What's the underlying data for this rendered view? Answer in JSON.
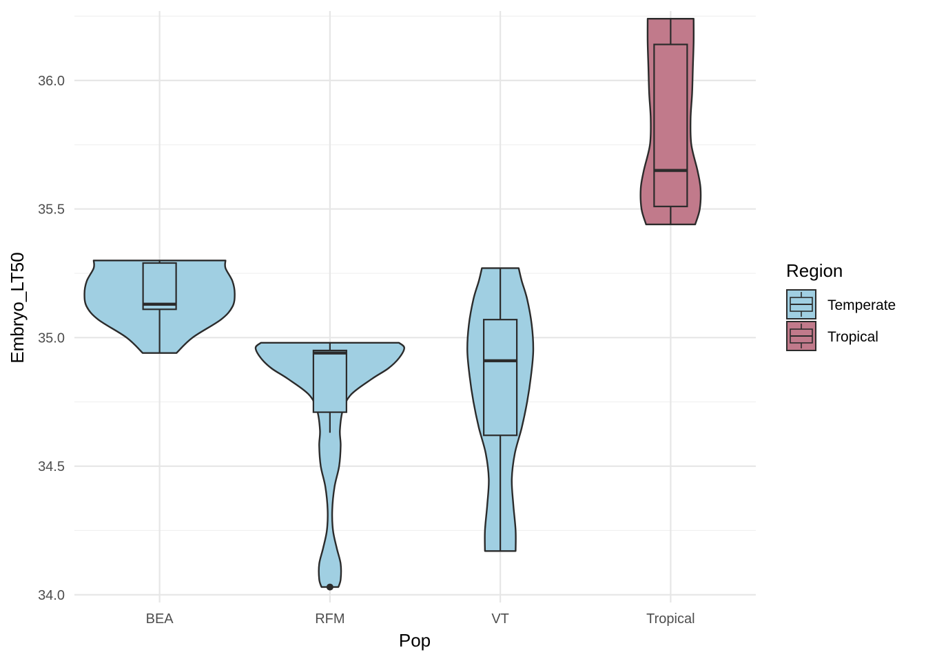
{
  "chart_data": {
    "type": "violin",
    "xlabel": "Pop",
    "ylabel": "Embryo_LT50",
    "ylim": [
      33.97,
      36.27
    ],
    "yticks": [
      34.0,
      34.5,
      35.0,
      35.5,
      36.0
    ],
    "ytick_labels": [
      "34.0",
      "34.5",
      "35.0",
      "35.5",
      "36.0"
    ],
    "categories": [
      "BEA",
      "RFM",
      "VT",
      "Tropical"
    ],
    "grid": true,
    "legend": {
      "title": "Region",
      "position": "right",
      "entries": [
        {
          "label": "Temperate",
          "color": "#a0cfe2"
        },
        {
          "label": "Tropical",
          "color": "#c17a8b"
        }
      ]
    },
    "groups": [
      {
        "category": "BEA",
        "region": "Temperate",
        "box": {
          "min": 34.94,
          "q1": 35.11,
          "median": 35.13,
          "q3": 35.29,
          "max": 35.3
        },
        "outliers": [],
        "violin": [
          [
            34.94,
            0.22
          ],
          [
            35.0,
            0.43
          ],
          [
            35.07,
            0.8
          ],
          [
            35.12,
            0.95
          ],
          [
            35.17,
            0.98
          ],
          [
            35.22,
            0.95
          ],
          [
            35.27,
            0.86
          ],
          [
            35.3,
            0.86
          ]
        ]
      },
      {
        "category": "RFM",
        "region": "Temperate",
        "box": {
          "min": 34.63,
          "q1": 34.71,
          "median": 34.94,
          "q3": 34.95,
          "max": 34.98
        },
        "outliers": [
          34.03
        ],
        "violin": [
          [
            34.03,
            0.11
          ],
          [
            34.06,
            0.14
          ],
          [
            34.12,
            0.14
          ],
          [
            34.18,
            0.09
          ],
          [
            34.25,
            0.04
          ],
          [
            34.33,
            0.03
          ],
          [
            34.42,
            0.06
          ],
          [
            34.5,
            0.12
          ],
          [
            34.58,
            0.14
          ],
          [
            34.64,
            0.13
          ],
          [
            34.72,
            0.17
          ],
          [
            34.78,
            0.28
          ],
          [
            34.84,
            0.55
          ],
          [
            34.88,
            0.76
          ],
          [
            34.92,
            0.9
          ],
          [
            34.96,
            0.97
          ],
          [
            34.98,
            0.9
          ]
        ]
      },
      {
        "category": "VT",
        "region": "Temperate",
        "box": {
          "min": 34.17,
          "q1": 34.62,
          "median": 34.91,
          "q3": 35.07,
          "max": 35.27
        },
        "outliers": [],
        "violin": [
          [
            34.17,
            0.2
          ],
          [
            34.25,
            0.2
          ],
          [
            34.35,
            0.17
          ],
          [
            34.45,
            0.15
          ],
          [
            34.55,
            0.19
          ],
          [
            34.65,
            0.28
          ],
          [
            34.75,
            0.35
          ],
          [
            34.85,
            0.4
          ],
          [
            34.95,
            0.43
          ],
          [
            35.05,
            0.41
          ],
          [
            35.15,
            0.35
          ],
          [
            35.22,
            0.28
          ],
          [
            35.27,
            0.24
          ]
        ]
      },
      {
        "category": "Tropical",
        "region": "Tropical",
        "box": {
          "min": 35.44,
          "q1": 35.51,
          "median": 35.65,
          "q3": 36.14,
          "max": 36.24
        },
        "outliers": [],
        "violin": [
          [
            35.44,
            0.32
          ],
          [
            35.5,
            0.38
          ],
          [
            35.58,
            0.39
          ],
          [
            35.65,
            0.35
          ],
          [
            35.75,
            0.27
          ],
          [
            35.85,
            0.26
          ],
          [
            35.95,
            0.28
          ],
          [
            36.05,
            0.29
          ],
          [
            36.15,
            0.3
          ],
          [
            36.24,
            0.3
          ]
        ]
      }
    ]
  }
}
